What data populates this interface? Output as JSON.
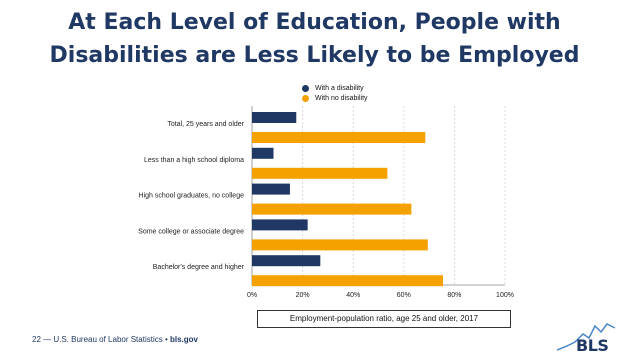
{
  "slide": {
    "title_line1": "At Each Level of Education, People with",
    "title_line2": "Disabilities are Less Likely to be Employed"
  },
  "footer": {
    "source": "22 — U.S. Bureau of Labor Statistics •",
    "url": "bls.gov",
    "logo_text": "BLS"
  },
  "colors": {
    "disability": "#1f3864",
    "no_disability": "#f5a100",
    "title": "#1f3864"
  },
  "chart_data": {
    "type": "bar",
    "orientation": "horizontal",
    "categories": [
      "Total, 25 years and older",
      "Less than a high school diploma",
      "High school graduates, no college",
      "Some college or associate degree",
      "Bachelor's degree and higher"
    ],
    "series": [
      {
        "name": "With a disability",
        "values": [
          17.5,
          8.5,
          15.0,
          22.0,
          27.0
        ]
      },
      {
        "name": "With no disability",
        "values": [
          68.5,
          53.5,
          63.0,
          69.5,
          75.5
        ]
      }
    ],
    "xlabel": "Employment-population ratio, age 25 and older, 2017",
    "xlim": [
      0,
      100
    ],
    "xticks": [
      "0%",
      "20%",
      "40%",
      "60%",
      "80%",
      "100%"
    ],
    "grid": true,
    "legend_position": "top"
  }
}
